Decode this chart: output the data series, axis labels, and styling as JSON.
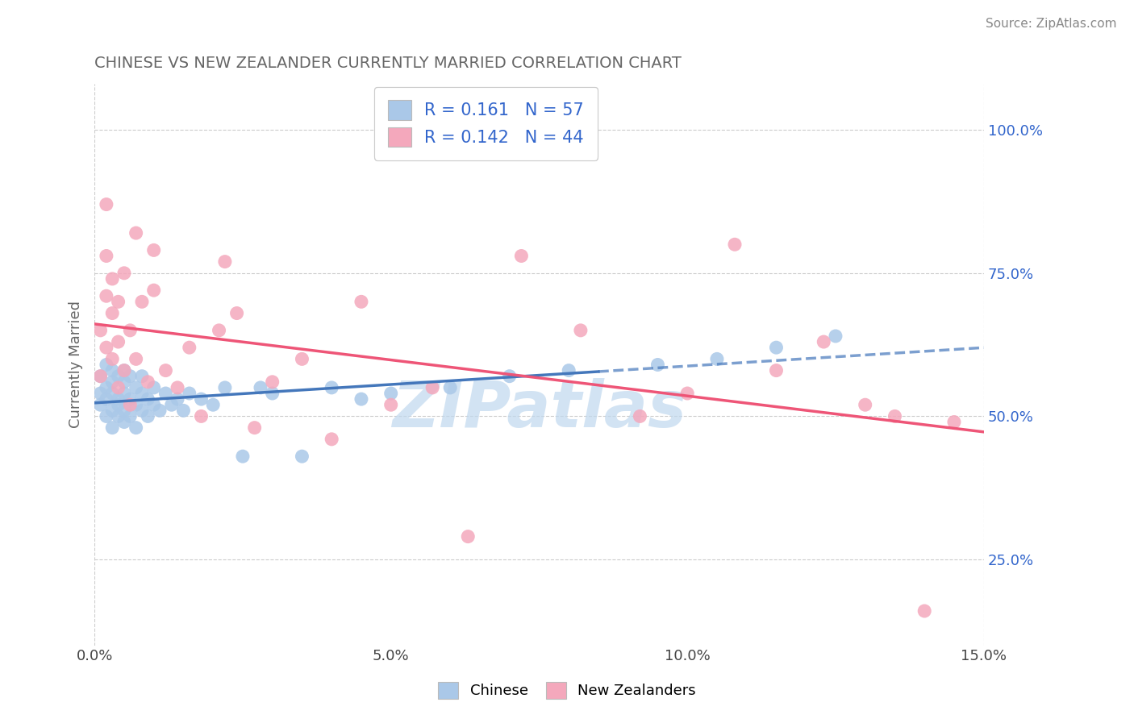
{
  "title": "CHINESE VS NEW ZEALANDER CURRENTLY MARRIED CORRELATION CHART",
  "source": "Source: ZipAtlas.com",
  "xlabel_bottom": "Chinese",
  "ylabel": "Currently Married",
  "xlim": [
    0.0,
    0.15
  ],
  "ylim": [
    0.1,
    1.08
  ],
  "xticks": [
    0.0,
    0.05,
    0.1,
    0.15
  ],
  "xtick_labels": [
    "0.0%",
    "5.0%",
    "10.0%",
    "15.0%"
  ],
  "yticks": [
    0.25,
    0.5,
    0.75,
    1.0
  ],
  "ytick_labels": [
    "25.0%",
    "50.0%",
    "75.0%",
    "100.0%"
  ],
  "chinese_color": "#aac8e8",
  "nz_color": "#f4a8bc",
  "chinese_line_color": "#4477bb",
  "nz_line_color": "#ee5577",
  "legend_text_color": "#3366cc",
  "R_chinese": 0.161,
  "N_chinese": 57,
  "R_nz": 0.142,
  "N_nz": 44,
  "chinese_scatter_x": [
    0.001,
    0.001,
    0.001,
    0.002,
    0.002,
    0.002,
    0.002,
    0.003,
    0.003,
    0.003,
    0.003,
    0.003,
    0.004,
    0.004,
    0.004,
    0.004,
    0.005,
    0.005,
    0.005,
    0.005,
    0.005,
    0.006,
    0.006,
    0.006,
    0.007,
    0.007,
    0.007,
    0.008,
    0.008,
    0.008,
    0.009,
    0.009,
    0.01,
    0.01,
    0.011,
    0.012,
    0.013,
    0.014,
    0.015,
    0.016,
    0.018,
    0.02,
    0.022,
    0.025,
    0.028,
    0.03,
    0.035,
    0.04,
    0.045,
    0.05,
    0.06,
    0.07,
    0.08,
    0.095,
    0.105,
    0.115,
    0.125
  ],
  "chinese_scatter_y": [
    0.54,
    0.52,
    0.57,
    0.5,
    0.55,
    0.59,
    0.53,
    0.51,
    0.56,
    0.48,
    0.54,
    0.58,
    0.5,
    0.53,
    0.57,
    0.52,
    0.49,
    0.54,
    0.58,
    0.51,
    0.56,
    0.5,
    0.53,
    0.57,
    0.52,
    0.55,
    0.48,
    0.51,
    0.54,
    0.57,
    0.5,
    0.53,
    0.52,
    0.55,
    0.51,
    0.54,
    0.52,
    0.53,
    0.51,
    0.54,
    0.53,
    0.52,
    0.55,
    0.43,
    0.55,
    0.54,
    0.43,
    0.55,
    0.53,
    0.54,
    0.55,
    0.57,
    0.58,
    0.59,
    0.6,
    0.62,
    0.64
  ],
  "nz_scatter_x": [
    0.001,
    0.001,
    0.002,
    0.002,
    0.002,
    0.003,
    0.003,
    0.003,
    0.004,
    0.004,
    0.004,
    0.005,
    0.005,
    0.006,
    0.006,
    0.007,
    0.008,
    0.009,
    0.01,
    0.012,
    0.014,
    0.016,
    0.018,
    0.021,
    0.024,
    0.027,
    0.03,
    0.035,
    0.04,
    0.045,
    0.05,
    0.057,
    0.063,
    0.072,
    0.082,
    0.092,
    0.1,
    0.108,
    0.115,
    0.123,
    0.13,
    0.135,
    0.14,
    0.145
  ],
  "nz_scatter_y": [
    0.57,
    0.65,
    0.71,
    0.62,
    0.78,
    0.6,
    0.68,
    0.74,
    0.55,
    0.63,
    0.7,
    0.58,
    0.75,
    0.52,
    0.65,
    0.6,
    0.7,
    0.56,
    0.72,
    0.58,
    0.55,
    0.62,
    0.5,
    0.65,
    0.68,
    0.48,
    0.56,
    0.6,
    0.46,
    0.7,
    0.52,
    0.55,
    0.29,
    0.78,
    0.65,
    0.5,
    0.54,
    0.8,
    0.58,
    0.63,
    0.52,
    0.5,
    0.16,
    0.49
  ],
  "nz_extra_scatter_x": [
    0.002,
    0.007,
    0.01,
    0.022
  ],
  "nz_extra_scatter_y": [
    0.87,
    0.82,
    0.79,
    0.77
  ],
  "watermark_text": "ZIPatlas",
  "watermark_color": "#c0d8ee",
  "grid_color": "#cccccc",
  "title_color": "#666666",
  "axis_label_color": "#666666",
  "blue_line_solid_x_end": 0.085,
  "title_fontsize": 14,
  "tick_fontsize": 13,
  "legend_fontsize": 15
}
